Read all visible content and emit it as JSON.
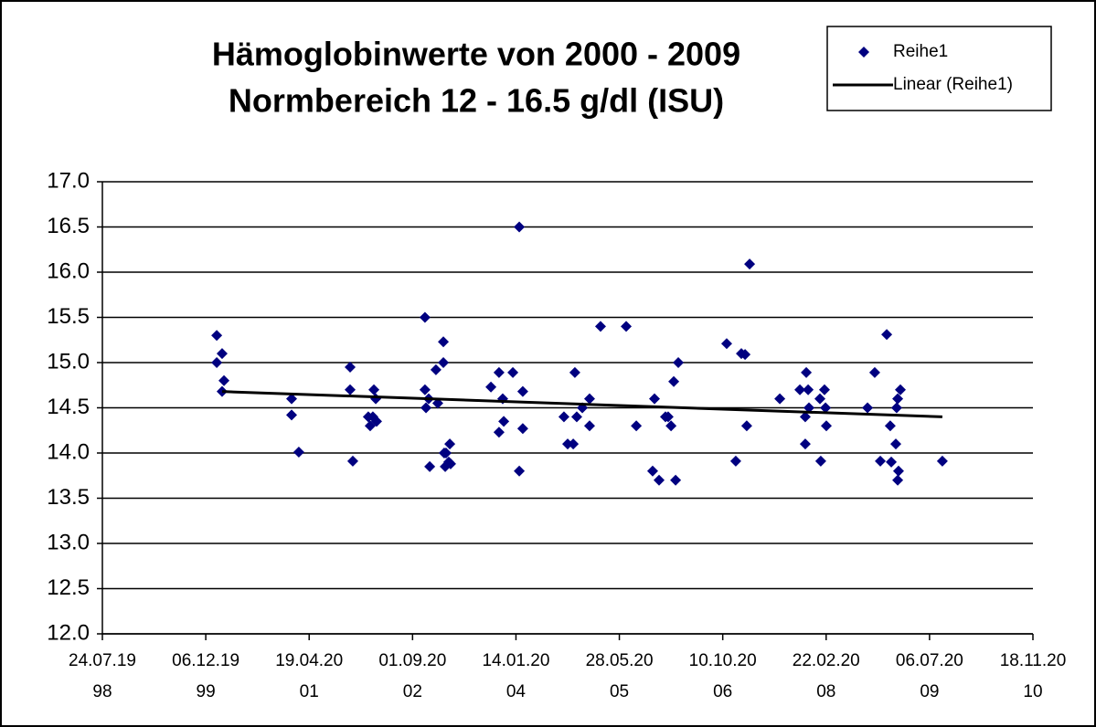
{
  "chart_data": {
    "type": "scatter",
    "title": "Hämoglobinwerte von 2000 - 2009",
    "subtitle": "Normbereich 12 - 16.5 g/dl (ISU)",
    "xlim": [
      36000,
      40500
    ],
    "xticks": [
      {
        "value": 36000,
        "label": "24.07.1998"
      },
      {
        "value": 36500,
        "label": "06.12.1999"
      },
      {
        "value": 37000,
        "label": "19.04.2001"
      },
      {
        "value": 37500,
        "label": "01.09.2002"
      },
      {
        "value": 38000,
        "label": "14.01.2004"
      },
      {
        "value": 38500,
        "label": "28.05.2005"
      },
      {
        "value": 39000,
        "label": "10.10.2006"
      },
      {
        "value": 39500,
        "label": "22.02.2008"
      },
      {
        "value": 40000,
        "label": "06.07.2009"
      },
      {
        "value": 40500,
        "label": "18.11.2010"
      }
    ],
    "ylim": [
      12,
      17
    ],
    "yticks": [
      {
        "value": 12,
        "label": "12.0"
      },
      12.5,
      {
        "value": 13,
        "label": "13.0"
      },
      13.5,
      {
        "value": 14,
        "label": "14.0"
      },
      14.5,
      {
        "value": 15,
        "label": "15.0"
      },
      15.5,
      {
        "value": 16,
        "label": "16.0"
      },
      16.5,
      {
        "value": 17,
        "label": "17.0"
      }
    ],
    "grid": true,
    "legend": "top-right",
    "series": [
      {
        "name": "Reihe1",
        "color": "#000080",
        "mode": "markers",
        "x": [
          36553,
          36553,
          36579,
          36588,
          36579,
          36915,
          36915,
          36950,
          37198,
          37198,
          37211,
          37286,
          37295,
          37313,
          37308,
          37322,
          37326,
          37560,
          37560,
          37565,
          37578,
          37583,
          37613,
          37622,
          37649,
          37649,
          37653,
          37662,
          37658,
          37675,
          37684,
          37680,
          37879,
          37918,
          37918,
          37941,
          37936,
          37985,
          38016,
          38016,
          38033,
          38033,
          38232,
          38250,
          38277,
          38285,
          38294,
          38321,
          38356,
          38356,
          38409,
          38533,
          38582,
          38661,
          38670,
          38692,
          38723,
          38736,
          38750,
          38763,
          38772,
          38785,
          39019,
          39063,
          39090,
          39108,
          39116,
          39130,
          39276,
          39373,
          39399,
          39399,
          39404,
          39413,
          39417,
          39470,
          39474,
          39492,
          39497,
          39501,
          39700,
          39735,
          39762,
          39793,
          39810,
          39815,
          39837,
          39841,
          39846,
          39846,
          39850,
          39859,
          40062
        ],
        "values": [
          15.3,
          15.0,
          15.1,
          14.8,
          14.68,
          14.6,
          14.42,
          14.01,
          14.95,
          14.7,
          13.91,
          14.4,
          14.3,
          14.7,
          14.4,
          14.6,
          14.35,
          15.5,
          14.7,
          14.5,
          14.6,
          13.85,
          14.92,
          14.55,
          15.23,
          15.0,
          14.0,
          14.0,
          13.85,
          13.9,
          13.88,
          14.1,
          14.73,
          14.89,
          14.23,
          14.35,
          14.6,
          14.89,
          16.5,
          13.8,
          14.68,
          14.27,
          14.4,
          14.1,
          14.1,
          14.89,
          14.4,
          14.5,
          14.6,
          14.3,
          15.4,
          15.4,
          14.3,
          13.8,
          14.6,
          13.7,
          14.4,
          14.4,
          14.3,
          14.79,
          13.7,
          15.0,
          15.21,
          13.91,
          15.1,
          15.09,
          14.3,
          16.09,
          14.6,
          14.7,
          14.4,
          14.1,
          14.89,
          14.7,
          14.5,
          14.6,
          13.91,
          14.7,
          14.5,
          14.3,
          14.5,
          14.89,
          13.91,
          15.31,
          14.3,
          13.9,
          14.1,
          14.5,
          14.6,
          13.7,
          13.8,
          14.7,
          13.91
        ]
      },
      {
        "name": "Linear (Reihe1)",
        "color": "#000000",
        "mode": "line",
        "x": [
          36579,
          40062
        ],
        "values": [
          14.68,
          14.4
        ]
      }
    ]
  }
}
